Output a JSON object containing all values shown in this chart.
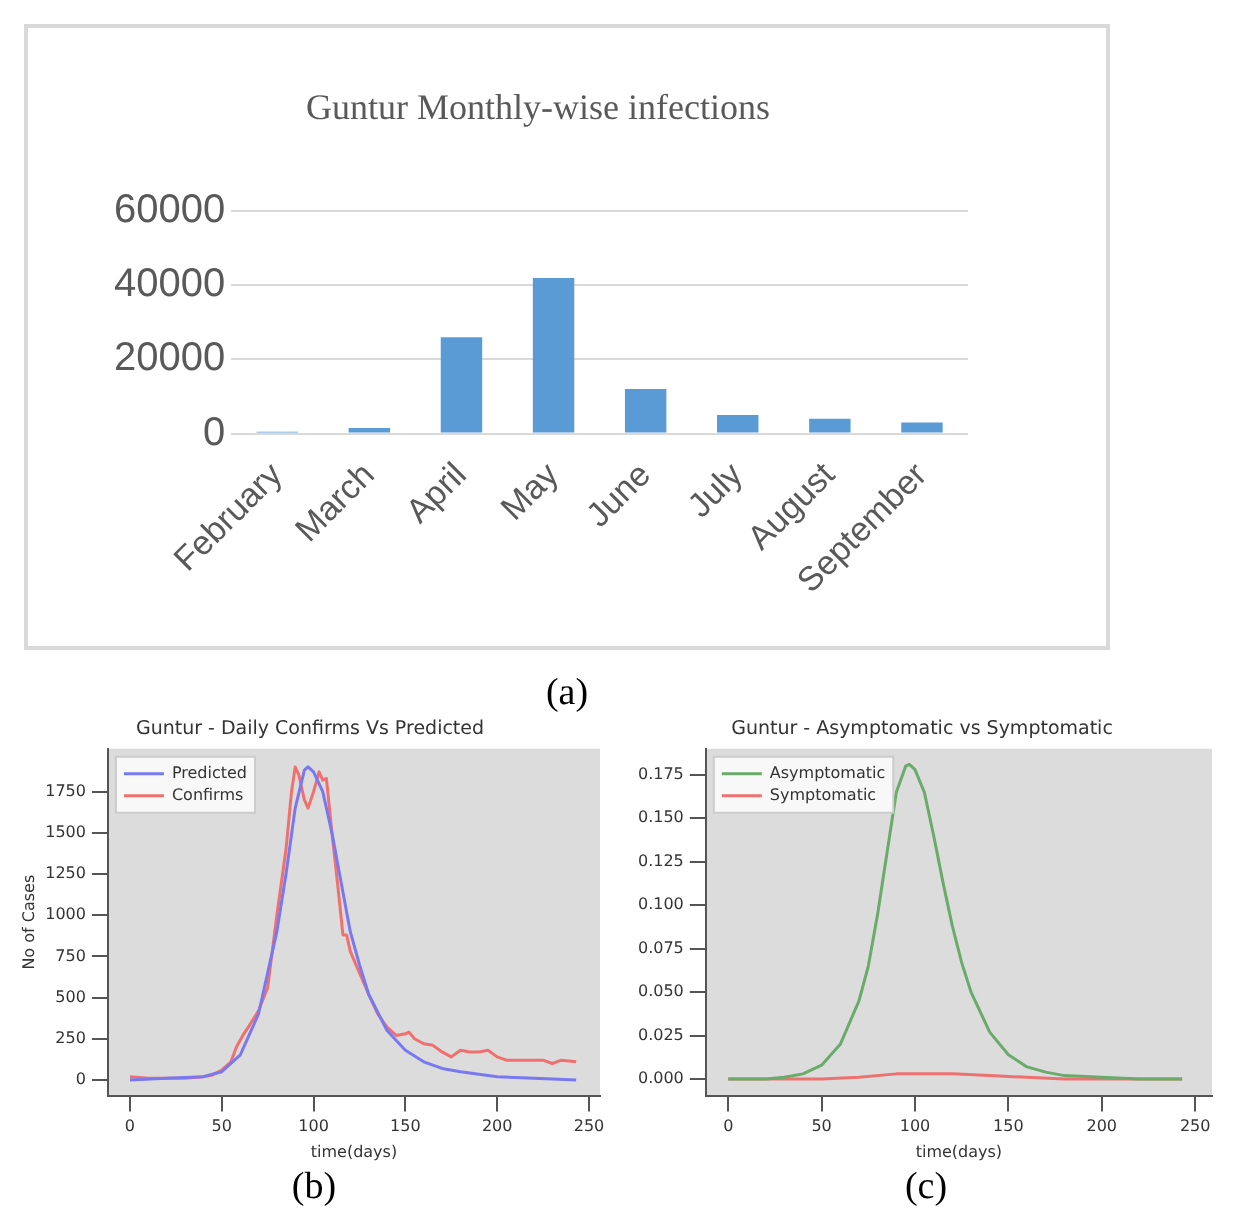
{
  "chart_data": [
    {
      "type": "bar",
      "title": "Guntur Monthly-wise infections",
      "categories": [
        "February",
        "March",
        "April",
        "May",
        "June",
        "July",
        "August",
        "September"
      ],
      "values": [
        500,
        1500,
        26000,
        42000,
        12000,
        5000,
        4000,
        3000
      ],
      "color": "#5b9bd5",
      "ylim": [
        0,
        60000
      ],
      "yticks": [
        0,
        20000,
        40000,
        60000
      ],
      "grid": "y",
      "annotations": [
        "(a)"
      ]
    },
    {
      "type": "line",
      "title": "Guntur - Daily Confirms Vs Predicted",
      "xlabel": "time(days)",
      "ylabel": "No of Cases",
      "xlim": [
        -12,
        256
      ],
      "ylim": [
        -95,
        2010
      ],
      "xticks": [
        0,
        50,
        100,
        150,
        200,
        250
      ],
      "yticks": [
        0,
        250,
        500,
        750,
        1000,
        1250,
        1500,
        1750
      ],
      "legend": "top left",
      "annotations": [
        "(b)"
      ],
      "series": [
        {
          "name": "Predicted",
          "color": "#7878f0",
          "x": [
            0,
            20,
            40,
            50,
            60,
            70,
            80,
            85,
            90,
            95,
            97,
            100,
            105,
            110,
            115,
            120,
            125,
            130,
            140,
            150,
            160,
            170,
            180,
            200,
            220,
            243
          ],
          "values": [
            0,
            10,
            20,
            50,
            150,
            400,
            900,
            1250,
            1650,
            1880,
            1900,
            1870,
            1750,
            1500,
            1200,
            900,
            700,
            520,
            300,
            180,
            110,
            70,
            50,
            20,
            10,
            0
          ]
        },
        {
          "name": "Confirms",
          "color": "#f07070",
          "x": [
            0,
            10,
            20,
            30,
            40,
            45,
            50,
            55,
            58,
            62,
            65,
            70,
            75,
            80,
            85,
            88,
            90,
            92,
            95,
            97,
            100,
            103,
            105,
            107,
            110,
            113,
            116,
            118,
            120,
            125,
            130,
            135,
            140,
            145,
            150,
            152,
            155,
            160,
            165,
            170,
            175,
            180,
            185,
            190,
            195,
            200,
            205,
            210,
            220,
            225,
            230,
            235,
            243
          ],
          "values": [
            20,
            10,
            10,
            10,
            20,
            30,
            60,
            110,
            200,
            280,
            330,
            420,
            560,
            1000,
            1400,
            1750,
            1900,
            1850,
            1700,
            1650,
            1750,
            1870,
            1820,
            1830,
            1500,
            1200,
            880,
            880,
            780,
            650,
            520,
            400,
            320,
            270,
            280,
            290,
            250,
            220,
            210,
            170,
            140,
            180,
            170,
            170,
            180,
            140,
            120,
            120,
            120,
            120,
            100,
            120,
            110
          ]
        }
      ]
    },
    {
      "type": "line",
      "title": "Guntur - Asymptomatic vs Symptomatic",
      "xlabel": "time(days)",
      "xlim": [
        -12,
        259
      ],
      "ylim": [
        -0.0095,
        0.19
      ],
      "xticks": [
        0,
        50,
        100,
        150,
        200,
        250
      ],
      "yticks": [
        {
          "value": 0,
          "label": "0.000"
        },
        {
          "value": 0.025,
          "label": "0.025"
        },
        {
          "value": 0.05,
          "label": "0.050"
        },
        {
          "value": 0.075,
          "label": "0.075"
        },
        {
          "value": 0.1,
          "label": "0.100"
        },
        {
          "value": 0.125,
          "label": "0.125"
        },
        {
          "value": 0.15,
          "label": "0.150"
        },
        {
          "value": 0.175,
          "label": "0.175"
        }
      ],
      "legend": "top left",
      "annotations": [
        "(c)"
      ],
      "series": [
        {
          "name": "Asymptomatic",
          "color": "#6aaa6a",
          "x": [
            0,
            20,
            30,
            40,
            50,
            60,
            70,
            75,
            80,
            85,
            90,
            95,
            97,
            100,
            105,
            110,
            115,
            120,
            125,
            130,
            140,
            150,
            160,
            170,
            180,
            200,
            220,
            243
          ],
          "values": [
            0,
            0,
            0.001,
            0.003,
            0.008,
            0.02,
            0.045,
            0.065,
            0.095,
            0.13,
            0.165,
            0.18,
            0.181,
            0.178,
            0.165,
            0.14,
            0.113,
            0.088,
            0.067,
            0.05,
            0.027,
            0.014,
            0.007,
            0.004,
            0.002,
            0.001,
            0,
            0
          ]
        },
        {
          "name": "Symptomatic",
          "color": "#ee7070",
          "x": [
            0,
            50,
            70,
            90,
            105,
            120,
            140,
            160,
            180,
            200,
            243
          ],
          "values": [
            0,
            0,
            0.001,
            0.003,
            0.003,
            0.003,
            0.002,
            0.001,
            0,
            0,
            0
          ]
        }
      ]
    }
  ]
}
